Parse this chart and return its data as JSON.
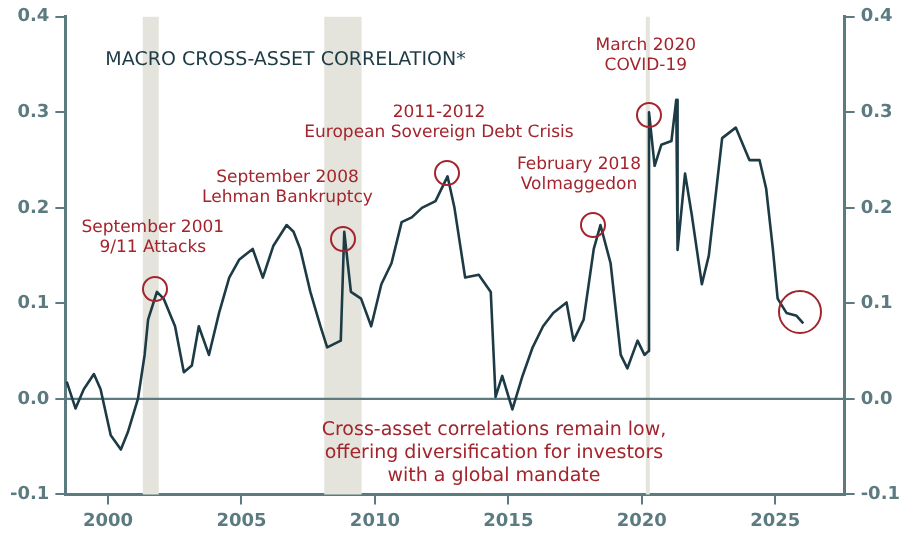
{
  "chart_data": {
    "type": "line",
    "title": "MACRO CROSS-ASSET CORRELATION*",
    "series": [
      {
        "color": "#1d3b45",
        "x": [
          1998.45,
          1998.78,
          1999.09,
          1999.47,
          1999.72,
          2000.1,
          2000.48,
          2000.74,
          2001.12,
          2001.37,
          2001.5,
          2001.83,
          2002.08,
          2002.51,
          2002.84,
          2003.14,
          2003.4,
          2003.78,
          2004.16,
          2004.54,
          2004.92,
          2005.42,
          2005.8,
          2006.19,
          2006.69,
          2006.95,
          2007.2,
          2007.58,
          2007.96,
          2008.21,
          2008.72,
          2008.85,
          2009.1,
          2009.48,
          2009.86,
          2010.24,
          2010.62,
          2011.0,
          2011.38,
          2011.76,
          2012.27,
          2012.72,
          2012.98,
          2013.38,
          2013.89,
          2014.34,
          2014.52,
          2014.77,
          2015.15,
          2015.53,
          2015.91,
          2016.3,
          2016.68,
          2017.18,
          2017.44,
          2017.82,
          2018.2,
          2018.45,
          2018.83,
          2019.21,
          2019.46,
          2019.84,
          2020.1,
          2020.25,
          2020.27,
          2020.48,
          2020.73,
          2021.11,
          2021.29,
          2021.34,
          2021.62,
          2021.87,
          2022.25,
          2022.51,
          2023.01,
          2023.52,
          2024.03,
          2024.41,
          2024.66,
          2024.91,
          2025.09,
          2025.42,
          2025.8,
          2026.05
        ],
        "values": [
          0.018,
          -0.01,
          0.01,
          0.026,
          0.01,
          -0.038,
          -0.053,
          -0.035,
          0.0,
          0.046,
          0.083,
          0.112,
          0.105,
          0.076,
          0.028,
          0.035,
          0.076,
          0.046,
          0.09,
          0.127,
          0.146,
          0.157,
          0.127,
          0.16,
          0.182,
          0.175,
          0.157,
          0.112,
          0.076,
          0.054,
          0.061,
          0.175,
          0.112,
          0.105,
          0.076,
          0.12,
          0.142,
          0.185,
          0.19,
          0.2,
          0.207,
          0.233,
          0.2,
          0.127,
          0.13,
          0.112,
          0.002,
          0.024,
          -0.011,
          0.024,
          0.054,
          0.076,
          0.09,
          0.101,
          0.061,
          0.083,
          0.157,
          0.182,
          0.142,
          0.046,
          0.032,
          0.061,
          0.046,
          0.05,
          0.3,
          0.244,
          0.266,
          0.27,
          0.313,
          0.156,
          0.236,
          0.193,
          0.12,
          0.15,
          0.273,
          0.284,
          0.25,
          0.25,
          0.22,
          0.157,
          0.105,
          0.09,
          0.087,
          0.079
        ]
      }
    ],
    "xlim": [
      1998.4,
      2027.6
    ],
    "xticks": [
      2000,
      2005,
      2010,
      2015,
      2020,
      2025
    ],
    "ylim": [
      -0.1,
      0.4
    ],
    "yticks": [
      -0.1,
      {
        "value": 0,
        "label": "0.0"
      },
      0.1,
      0.2,
      0.3,
      0.4
    ],
    "y2lim": [
      -0.1,
      0.4
    ],
    "y2ticks": [
      -0.1,
      {
        "value": 0,
        "label": "0.0"
      },
      0.1,
      0.2,
      0.3,
      0.4
    ],
    "grid": false,
    "legend": false,
    "marker": "none",
    "line_style": "solid",
    "ref_lines": [
      {
        "axis": "y",
        "value": 0,
        "color": "#5b7b80"
      }
    ],
    "bands": [
      {
        "axis": "x",
        "from": 2001.3,
        "to": 2001.9,
        "color": "#e4e4dc"
      },
      {
        "axis": "x",
        "from": 2008.1,
        "to": 2009.5,
        "color": "#e4e4dc"
      },
      {
        "axis": "x",
        "from": 2020.15,
        "to": 2020.3,
        "color": "#e4e4dc"
      }
    ],
    "annotations": [
      {
        "text": "September 2001\n9/11 Attacks",
        "x": 2001.75,
        "y": 0.116
      },
      {
        "text": "September 2008\nLehman Bankruptcy",
        "x": 2008.82,
        "y": 0.168
      },
      {
        "text": "2011-2012\nEuropean Sovereign Debt Crisis",
        "x": 2012.7,
        "y": 0.236
      },
      {
        "text": "February 2018\nVolmaggedon",
        "x": 2018.17,
        "y": 0.182
      },
      {
        "text": "March 2020\nCOVID-19",
        "x": 2020.3,
        "y": 0.298
      },
      "Cross-asset correlations remain low,\noffering diversification for investors\nwith a global mandate"
    ]
  }
}
